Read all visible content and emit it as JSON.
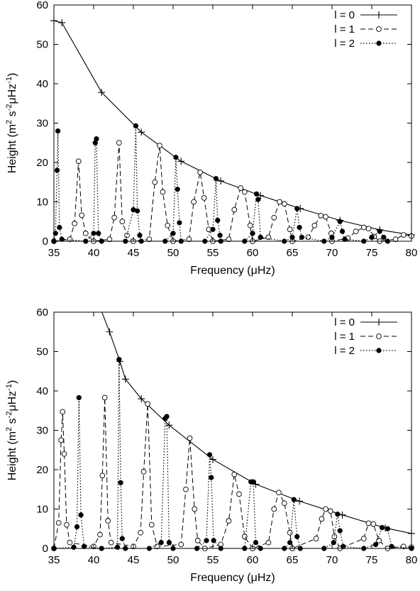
{
  "chart_data": [
    {
      "type": "line",
      "title": "",
      "xlabel": "Frequency (μHz)",
      "ylabel_parts": {
        "main": "Height (m",
        "sup1": "2",
        "mid": " s",
        "sup2": "-2",
        "tail": "μHz",
        "sup3": "-1",
        "end": ")"
      },
      "xlim": [
        35,
        80
      ],
      "ylim": [
        0,
        60
      ],
      "xticks": [
        35,
        40,
        45,
        50,
        55,
        60,
        65,
        70,
        75,
        80
      ],
      "yticks": [
        0,
        10,
        20,
        30,
        40,
        50,
        60
      ],
      "grid": false,
      "legend_position": "top-right",
      "series": [
        {
          "name": "l = 0",
          "style": "solid-plus",
          "x": [
            35,
            36,
            41,
            46,
            51,
            56,
            61,
            66,
            71,
            76,
            80
          ],
          "y": [
            56,
            55.5,
            37.8,
            27.7,
            20.3,
            15.3,
            11.6,
            8.3,
            5.3,
            2.9,
            1.6
          ]
        },
        {
          "name": "l = 1",
          "style": "dashed-open-circle",
          "x": [
            35,
            37,
            37.6,
            38.1,
            38.5,
            39,
            40,
            42,
            42.6,
            43.2,
            43.6,
            44.2,
            45,
            47,
            47.7,
            48.3,
            48.7,
            49.3,
            50,
            52,
            52.6,
            53.4,
            53.9,
            54.5,
            55,
            57,
            57.7,
            58.5,
            59,
            59.7,
            60,
            62,
            62.7,
            63.4,
            64,
            64.7,
            65,
            67,
            67.8,
            68.6,
            69.2,
            69.9,
            70,
            72,
            73,
            74,
            74.6,
            75.3,
            76,
            78,
            79,
            80
          ],
          "y": [
            0,
            0.5,
            4.5,
            20.3,
            6.6,
            2,
            0,
            0.5,
            6,
            25,
            5,
            1.5,
            0,
            0.5,
            15,
            24.3,
            12.5,
            4,
            0,
            0.5,
            10,
            17.5,
            11,
            3,
            0,
            0.5,
            8,
            13.5,
            12.5,
            4,
            0,
            1,
            6,
            10,
            9.5,
            3,
            0,
            1,
            4,
            6.5,
            6.2,
            2,
            0,
            0.8,
            2.5,
            3.5,
            3.2,
            1.2,
            0,
            0.5,
            1.6,
            1.3
          ]
        },
        {
          "name": "l = 2",
          "style": "dotted-filled-circle",
          "x": [
            35,
            35.2,
            35.4,
            35.5,
            35.7,
            36,
            39,
            40,
            40.2,
            40.35,
            40.6,
            41,
            44,
            45,
            45.3,
            45.5,
            45.8,
            46,
            49,
            50,
            50.35,
            50.55,
            50.8,
            51,
            54,
            55,
            55.4,
            55.6,
            55.9,
            56,
            59,
            60,
            60.5,
            60.7,
            61,
            64,
            65,
            65.6,
            65.9,
            66.2,
            69,
            70,
            71,
            71.3,
            71.6,
            74,
            75,
            76,
            76.5,
            77
          ],
          "y": [
            0,
            2,
            18,
            28,
            3.5,
            0.5,
            0,
            2,
            25,
            26,
            2,
            0,
            0,
            8,
            29.3,
            7.7,
            1.5,
            0,
            0,
            2,
            21.3,
            13.2,
            4.7,
            0,
            0,
            3,
            15.9,
            5.3,
            1.5,
            0,
            0,
            2,
            12,
            10.6,
            1,
            0,
            1,
            8.3,
            3.5,
            1,
            0,
            1,
            5,
            2.5,
            0.5,
            0,
            1,
            2.5,
            1,
            0
          ]
        }
      ]
    },
    {
      "type": "line",
      "title": "",
      "xlabel": "Frequency (μHz)",
      "ylabel_parts": {
        "main": "Height (m",
        "sup1": "2",
        "mid": " s",
        "sup2": "-2",
        "tail": "μHz",
        "sup3": "-1",
        "end": ")"
      },
      "xlim": [
        35,
        80
      ],
      "ylim": [
        0,
        60
      ],
      "xticks": [
        35,
        40,
        45,
        50,
        55,
        60,
        65,
        70,
        75,
        80
      ],
      "yticks": [
        0,
        10,
        20,
        30,
        40,
        50,
        60
      ],
      "grid": false,
      "legend_position": "top-right",
      "series": [
        {
          "name": "l = 0",
          "style": "solid-plus",
          "x": [
            39.5,
            42,
            43.3,
            44,
            46,
            49.5,
            55,
            60.4,
            65.9,
            71.3,
            76.7,
            80
          ],
          "y": [
            68,
            55,
            47.5,
            43,
            38,
            31.3,
            22.6,
            16.3,
            12,
            8.5,
            5.2,
            3.8
          ]
        },
        {
          "name": "l = 1",
          "style": "dashed-open-circle",
          "x": [
            35,
            35.6,
            35.9,
            36.1,
            36.3,
            36.6,
            37,
            40,
            40.8,
            41.1,
            41.4,
            41.8,
            42.2,
            45,
            45.9,
            46.3,
            46.8,
            47.3,
            48,
            51,
            51.6,
            52.1,
            52.7,
            53.1,
            54,
            56,
            57,
            57.7,
            58.3,
            59,
            60,
            62,
            62.7,
            63.3,
            64,
            64.7,
            65,
            68,
            68.7,
            69.2,
            69.8,
            70.3,
            71,
            74,
            74.6,
            75.2,
            75.9,
            77,
            79,
            80
          ],
          "y": [
            0,
            6.5,
            27.5,
            34.7,
            24,
            6,
            1.5,
            0.5,
            3.5,
            18.5,
            38.3,
            7,
            1.5,
            0.5,
            4,
            19.5,
            36.7,
            6,
            0.5,
            1,
            15,
            28,
            10,
            2,
            0,
            1,
            7,
            18.8,
            13.8,
            3,
            0,
            1.5,
            10,
            14.2,
            11.5,
            4,
            0,
            2.5,
            7.5,
            10,
            9.5,
            3,
            0,
            2.5,
            6.4,
            6.2,
            2,
            0,
            0.5,
            0.3
          ]
        },
        {
          "name": "l = 2",
          "style": "dotted-filled-circle",
          "x": [
            35,
            37.5,
            37.9,
            38.15,
            38.4,
            38.8,
            41,
            43,
            43.2,
            43.4,
            43.6,
            44,
            47,
            48.5,
            49,
            49.2,
            49.5,
            50,
            53,
            54.2,
            54.6,
            54.8,
            55.1,
            56,
            59,
            59.8,
            60.1,
            60.4,
            61,
            64,
            64.7,
            65.2,
            65.6,
            66,
            69,
            70.2,
            70.7,
            71,
            71.4,
            74,
            75.5,
            76.3,
            77,
            77.5,
            80
          ],
          "y": [
            0,
            0.3,
            5.5,
            38.3,
            8.5,
            0.5,
            0,
            0.3,
            48,
            16.7,
            2.5,
            0,
            0,
            1.5,
            33,
            33.5,
            1.5,
            0,
            0,
            2,
            23.8,
            18,
            2,
            0,
            0,
            16.9,
            16.9,
            1.5,
            0,
            0,
            1.5,
            12.4,
            3,
            0,
            0,
            1.5,
            8.7,
            4.5,
            0.5,
            0,
            1,
            5.3,
            5,
            0.5,
            0
          ]
        }
      ]
    }
  ]
}
